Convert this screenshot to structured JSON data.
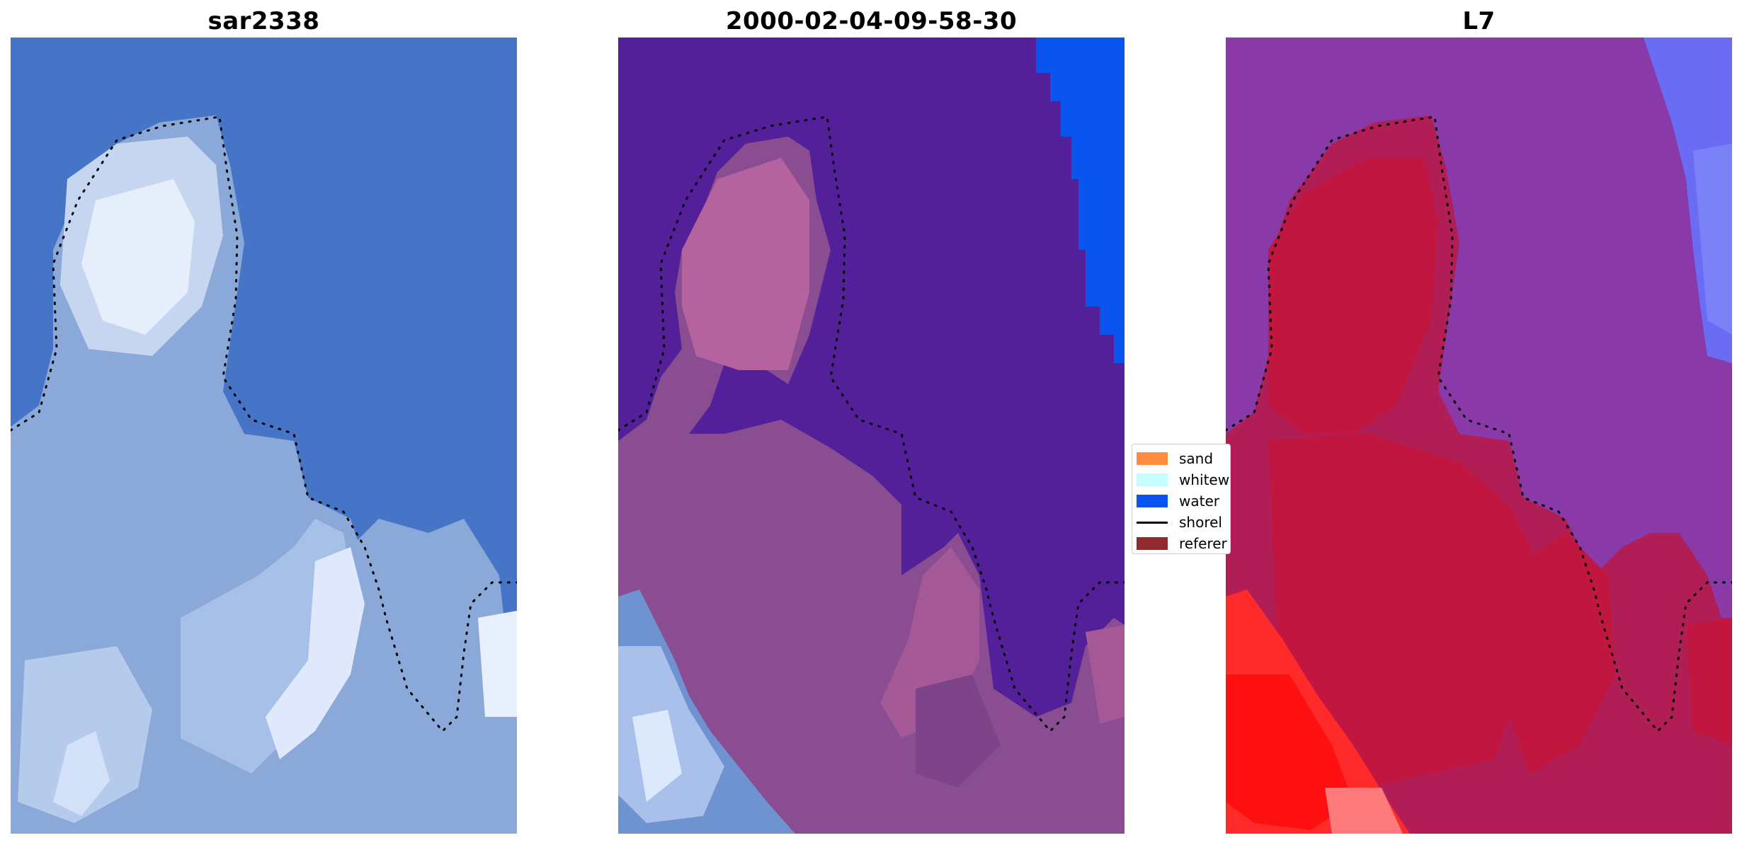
{
  "panels": {
    "rgb": {
      "title": "sar2338"
    },
    "classified": {
      "title": "2000-02-04-09-58-30"
    },
    "index": {
      "title": "L7"
    }
  },
  "legend": {
    "items": [
      {
        "label": "sand",
        "color": "#ff8c3f",
        "kind": "patch"
      },
      {
        "label": "whitew",
        "color": "#c7fcfc",
        "kind": "patch"
      },
      {
        "label": "water",
        "color": "#0a55f0",
        "kind": "patch"
      },
      {
        "label": "shorel",
        "color": "#000000",
        "kind": "line"
      },
      {
        "label": "referer",
        "color": "#8f2a2d",
        "kind": "patch"
      }
    ]
  },
  "colors": {
    "rgb_water": "#3f6fc4",
    "rgb_land": "#8aa8d8",
    "rgb_bright": "#e6eefb",
    "cls_water_deep": "#53209a",
    "cls_land": "#8a4d91",
    "cls_land_light": "#b4639e",
    "cls_water_class": "#0a55f0",
    "idx_water": "#8a3aa8",
    "idx_land": "#c0163f",
    "idx_red": "#ff1a1a",
    "idx_blue": "#6a6cf4"
  }
}
